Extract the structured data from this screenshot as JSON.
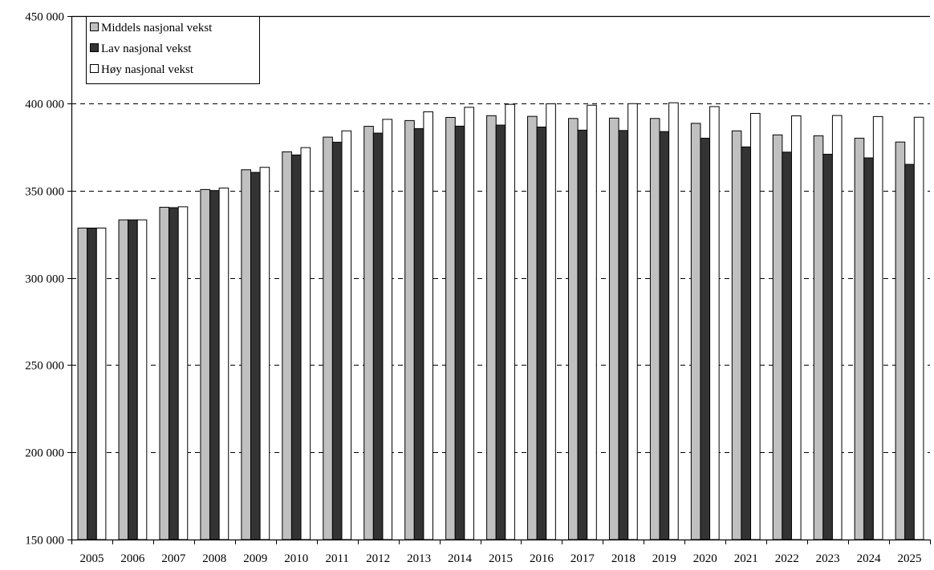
{
  "chart_data": {
    "type": "bar",
    "title": "",
    "xlabel": "",
    "ylabel": "",
    "ylim": [
      150000,
      450000
    ],
    "yticks": [
      150000,
      200000,
      250000,
      300000,
      350000,
      400000,
      450000
    ],
    "ytick_labels": [
      "150 000",
      "200 000",
      "250 000",
      "300 000",
      "350 000",
      "400 000",
      "450 000"
    ],
    "grid": "dashed horizontal",
    "legend_position": "top-left",
    "categories": [
      "2005",
      "2006",
      "2007",
      "2008",
      "2009",
      "2010",
      "2011",
      "2012",
      "2013",
      "2014",
      "2015",
      "2016",
      "2017",
      "2018",
      "2019",
      "2020",
      "2021",
      "2022",
      "2023",
      "2024",
      "2025"
    ],
    "series": [
      {
        "name": "Middels nasjonal vekst",
        "color": "#c0c0c0",
        "values": [
          328500,
          333200,
          340400,
          350600,
          361900,
          372200,
          380600,
          386800,
          390100,
          391900,
          392900,
          392500,
          391300,
          391500,
          391300,
          388500,
          384200,
          381900,
          381400,
          380000,
          377800
        ]
      },
      {
        "name": "Lav nasjonal vekst",
        "color": "#333333",
        "values": [
          328500,
          333200,
          340200,
          350000,
          360400,
          370400,
          377700,
          382900,
          385500,
          386900,
          387500,
          386400,
          384600,
          384400,
          383800,
          380000,
          375000,
          372000,
          370800,
          368700,
          365000
        ]
      },
      {
        "name": "Høy nasjonal vekst",
        "color": "#ffffff",
        "values": [
          328500,
          333200,
          340700,
          351400,
          363300,
          374600,
          384200,
          390800,
          395100,
          397700,
          399400,
          399700,
          398900,
          399800,
          400300,
          398100,
          394200,
          392800,
          393000,
          392400,
          392000
        ]
      }
    ]
  }
}
